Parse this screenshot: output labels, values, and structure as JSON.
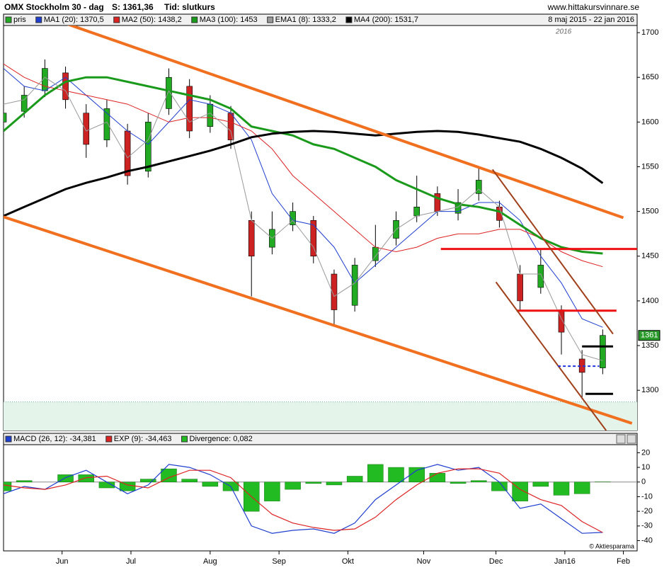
{
  "header": {
    "title": "OMX Stockholm 30 - dag",
    "last": "S: 1361,36",
    "mode": "Tid: slutkurs",
    "site": "www.hittakursvinnare.se"
  },
  "chart_data": [
    {
      "type": "candlestick",
      "name": "pris",
      "up_color": "#22aa22",
      "down_color": "#cc2222",
      "period": "8 maj 2015 - 22 jan 2016",
      "year_note": "2016",
      "price_tag": "1361",
      "xlim": [
        0,
        184
      ],
      "ylim": [
        1255,
        1708
      ],
      "yticks": [
        1300,
        1350,
        1400,
        1450,
        1500,
        1550,
        1600,
        1650,
        1700
      ],
      "x": [
        0,
        6,
        12,
        18,
        24,
        30,
        36,
        42,
        48,
        54,
        60,
        66,
        72,
        78,
        84,
        90,
        96,
        102,
        108,
        114,
        120,
        126,
        132,
        138,
        144,
        150,
        156,
        162,
        168,
        174
      ],
      "open": [
        1600,
        1612,
        1635,
        1655,
        1610,
        1580,
        1590,
        1545,
        1615,
        1640,
        1595,
        1610,
        1490,
        1460,
        1485,
        1490,
        1430,
        1395,
        1445,
        1470,
        1495,
        1520,
        1498,
        1520,
        1505,
        1430,
        1415,
        1390,
        1335,
        1325
      ],
      "high": [
        1625,
        1640,
        1670,
        1662,
        1620,
        1625,
        1598,
        1610,
        1660,
        1648,
        1630,
        1618,
        1500,
        1500,
        1510,
        1495,
        1435,
        1448,
        1485,
        1500,
        1540,
        1528,
        1525,
        1548,
        1512,
        1440,
        1458,
        1395,
        1345,
        1368
      ],
      "low": [
        1590,
        1605,
        1628,
        1615,
        1560,
        1572,
        1530,
        1538,
        1608,
        1582,
        1588,
        1570,
        1405,
        1452,
        1478,
        1442,
        1372,
        1388,
        1438,
        1462,
        1488,
        1495,
        1490,
        1512,
        1482,
        1388,
        1408,
        1340,
        1290,
        1318
      ],
      "close": [
        1610,
        1630,
        1660,
        1625,
        1575,
        1615,
        1540,
        1600,
        1650,
        1590,
        1620,
        1580,
        1450,
        1480,
        1500,
        1450,
        1390,
        1440,
        1460,
        1490,
        1505,
        1500,
        1510,
        1535,
        1490,
        1400,
        1440,
        1365,
        1320,
        1361.36
      ],
      "series": [
        {
          "name": "MA1 (20): 1370,5",
          "color": "#1f3fd0",
          "width": 1,
          "values": [
            1660,
            1640,
            1635,
            1650,
            1630,
            1610,
            1590,
            1575,
            1600,
            1625,
            1620,
            1610,
            1580,
            1520,
            1490,
            1485,
            1460,
            1420,
            1440,
            1460,
            1480,
            1500,
            1500,
            1510,
            1510,
            1490,
            1450,
            1420,
            1380,
            1370.5
          ]
        },
        {
          "name": "MA2 (50): 1438,2",
          "color": "#dd2222",
          "width": 1,
          "values": [
            1665,
            1650,
            1640,
            1635,
            1630,
            1625,
            1620,
            1610,
            1600,
            1605,
            1605,
            1600,
            1590,
            1570,
            1540,
            1520,
            1500,
            1480,
            1460,
            1455,
            1460,
            1470,
            1475,
            1475,
            1480,
            1480,
            1470,
            1455,
            1445,
            1438.2
          ]
        },
        {
          "name": "MA3 (100): 1453",
          "color": "#1a9a1a",
          "width": 3,
          "values": [
            1590,
            1610,
            1630,
            1645,
            1650,
            1650,
            1645,
            1640,
            1635,
            1630,
            1625,
            1615,
            1595,
            1590,
            1585,
            1575,
            1570,
            1560,
            1550,
            1535,
            1525,
            1515,
            1508,
            1505,
            1500,
            1485,
            1470,
            1460,
            1455,
            1453
          ]
        },
        {
          "name": "EMA1 (8): 1333,2",
          "color": "#999999",
          "width": 1,
          "values": [
            1620,
            1625,
            1650,
            1635,
            1590,
            1600,
            1560,
            1580,
            1635,
            1600,
            1610,
            1590,
            1490,
            1470,
            1490,
            1460,
            1405,
            1420,
            1450,
            1480,
            1495,
            1500,
            1505,
            1525,
            1505,
            1430,
            1430,
            1380,
            1340,
            1333.2
          ]
        },
        {
          "name": "MA4 (200): 1531,7",
          "color": "#000000",
          "width": 3,
          "values": [
            1495,
            1505,
            1515,
            1525,
            1532,
            1538,
            1545,
            1550,
            1556,
            1562,
            1568,
            1575,
            1583,
            1587,
            1589,
            1590,
            1589,
            1587,
            1585,
            1587,
            1589,
            1590,
            1589,
            1586,
            1582,
            1578,
            1570,
            1560,
            1548,
            1531.7
          ]
        }
      ],
      "trendlines": [
        {
          "color": "#f07020",
          "width": 4,
          "x": [
            13,
            180
          ],
          "y": [
            1717,
            1493
          ]
        },
        {
          "color": "#f07020",
          "width": 4,
          "x": [
            0,
            182.5
          ],
          "y": [
            1494,
            1263
          ]
        },
        {
          "color": "#ee1111",
          "width": 3,
          "x": [
            127,
            186
          ],
          "y": [
            1458,
            1458
          ]
        },
        {
          "color": "#ee1111",
          "width": 3,
          "x": [
            149,
            178
          ],
          "y": [
            1389,
            1389
          ]
        },
        {
          "color": "#a0401a",
          "width": 2,
          "x": [
            142,
            177
          ],
          "y": [
            1547,
            1363
          ]
        },
        {
          "color": "#a0401a",
          "width": 2,
          "x": [
            143,
            175
          ],
          "y": [
            1421,
            1255
          ]
        },
        {
          "color": "#000000",
          "width": 3,
          "x": [
            168,
            177
          ],
          "y": [
            1349,
            1349
          ]
        },
        {
          "color": "#000000",
          "width": 3,
          "x": [
            169,
            177
          ],
          "y": [
            1296,
            1296
          ]
        },
        {
          "color": "#2233dd",
          "width": 2,
          "dash": true,
          "x": [
            161,
            173
          ],
          "y": [
            1327,
            1327
          ]
        }
      ],
      "zone": [
        1255,
        1287
      ],
      "zone_color": "#e4f4ea"
    },
    {
      "type": "line",
      "credit": "© Aktiesparama",
      "xlim": [
        0,
        184
      ],
      "ylim": [
        -47,
        25.5
      ],
      "yticks": [
        20,
        10,
        0,
        -10,
        -20,
        -30,
        -40
      ],
      "xticks": [
        {
          "value": 17,
          "label": "Jun"
        },
        {
          "value": 37,
          "label": "Jul"
        },
        {
          "value": 60,
          "label": "Aug"
        },
        {
          "value": 80,
          "label": "Sep"
        },
        {
          "value": 100,
          "label": "Okt"
        },
        {
          "value": 122,
          "label": "Nov"
        },
        {
          "value": 143,
          "label": "Dec"
        },
        {
          "value": 163,
          "label": "Jan16"
        },
        {
          "value": 180,
          "label": "Feb"
        }
      ],
      "x": [
        0,
        6,
        12,
        18,
        24,
        30,
        36,
        42,
        48,
        54,
        60,
        66,
        72,
        78,
        84,
        90,
        96,
        102,
        108,
        114,
        120,
        126,
        132,
        138,
        144,
        150,
        156,
        162,
        168,
        174
      ],
      "series": [
        {
          "name": "Divergence: 0,082",
          "color": "#22bb22",
          "style": "bar",
          "values": [
            -6,
            1,
            0,
            5,
            5,
            -4,
            -6,
            2,
            9,
            2,
            -3,
            -6,
            -20,
            -13,
            -5,
            -1,
            -2,
            4,
            12,
            10,
            10,
            6,
            -1,
            1,
            -6,
            -13,
            -3,
            -9,
            -8,
            0.082
          ]
        },
        {
          "name": "MACD (26, 12): -34,381",
          "color": "#1f3fd0",
          "style": "line",
          "values": [
            -8,
            -3,
            -5,
            3,
            8,
            0,
            -8,
            -2,
            12,
            10,
            5,
            -3,
            -30,
            -35,
            -33,
            -32,
            -35,
            -28,
            -12,
            -2,
            8,
            12,
            8,
            10,
            0,
            -18,
            -15,
            -25,
            -35,
            -34.381
          ]
        },
        {
          "name": "EXP (9): -34,463",
          "color": "#dd2222",
          "style": "line",
          "values": [
            -2,
            -4,
            -5,
            -2,
            3,
            4,
            -2,
            -4,
            3,
            8,
            8,
            3,
            -10,
            -22,
            -28,
            -31,
            -33,
            -32,
            -24,
            -12,
            -2,
            6,
            9,
            9,
            6,
            -5,
            -12,
            -16,
            -27,
            -34.463
          ]
        }
      ]
    }
  ]
}
